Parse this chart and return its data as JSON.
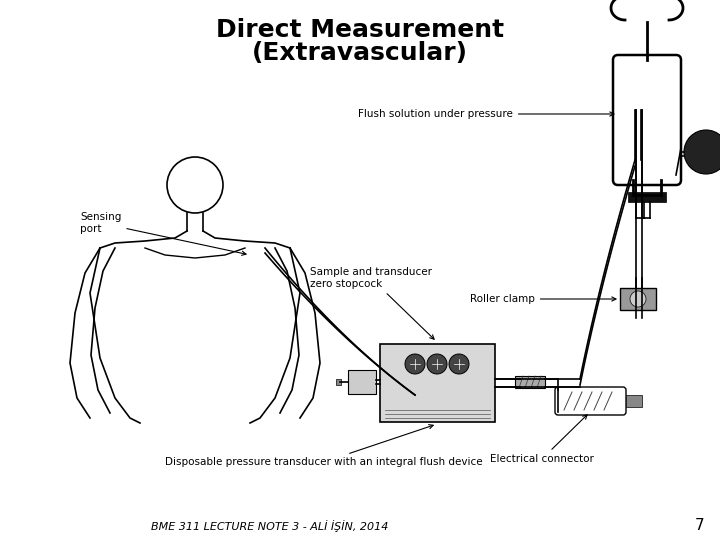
{
  "title_line1": "Direct Measurement",
  "title_line2": "(Extravascular)",
  "footer_text": "BME 311 LECTURE NOTE 3 - ALİ İŞİN, 2014",
  "page_number": "7",
  "background_color": "#ffffff",
  "title_fontsize": 18,
  "title_fontweight": "bold",
  "footer_fontsize": 8,
  "page_number_fontsize": 11
}
